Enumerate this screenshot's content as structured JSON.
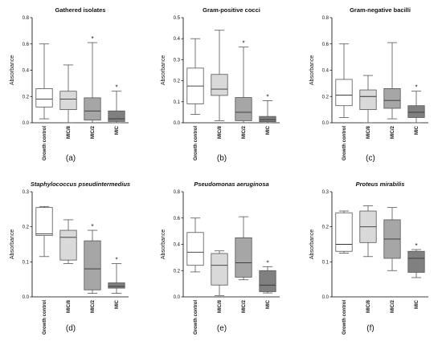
{
  "chart_data": [
    {
      "type": "box",
      "panel_label": "(a)",
      "title": "Gathered isolates",
      "title_italic": false,
      "ylabel": "Absorbance",
      "ylim": [
        0,
        0.8
      ],
      "yticks": [
        {
          "v": 0,
          "t": "0.0"
        },
        {
          "v": 0.2,
          "t": "0.2"
        },
        {
          "v": 0.4,
          "t": "0.4"
        },
        {
          "v": 0.6,
          "t": "0.6"
        },
        {
          "v": 0.8,
          "t": "0.8"
        }
      ],
      "categories": [
        "Growth control",
        "MIC/8",
        "MIC/2",
        "MIC"
      ],
      "fills": [
        "#ffffff",
        "#d9d9d9",
        "#a6a6a6",
        "#808080"
      ],
      "boxes": [
        {
          "min": 0.03,
          "q1": 0.12,
          "median": 0.18,
          "q3": 0.26,
          "max": 0.6,
          "star": false
        },
        {
          "min": 0.0,
          "q1": 0.1,
          "median": 0.18,
          "q3": 0.24,
          "max": 0.44,
          "star": false
        },
        {
          "min": 0.0,
          "q1": 0.02,
          "median": 0.09,
          "q3": 0.19,
          "max": 0.61,
          "star": true
        },
        {
          "min": 0.0,
          "q1": 0.01,
          "median": 0.03,
          "q3": 0.09,
          "max": 0.24,
          "star": true
        }
      ]
    },
    {
      "type": "box",
      "panel_label": "(b)",
      "title": "Gram-positive cocci",
      "title_italic": false,
      "ylabel": "Absorbance",
      "ylim": [
        0,
        0.5
      ],
      "yticks": [
        {
          "v": 0,
          "t": "0.0"
        },
        {
          "v": 0.1,
          "t": "0.1"
        },
        {
          "v": 0.2,
          "t": "0.2"
        },
        {
          "v": 0.3,
          "t": "0.3"
        },
        {
          "v": 0.4,
          "t": "0.4"
        },
        {
          "v": 0.5,
          "t": "0.5"
        }
      ],
      "categories": [
        "Growth control",
        "MIC/8",
        "MIC/2",
        "MIC"
      ],
      "fills": [
        "#ffffff",
        "#d9d9d9",
        "#a6a6a6",
        "#808080"
      ],
      "boxes": [
        {
          "min": 0.04,
          "q1": 0.09,
          "median": 0.175,
          "q3": 0.26,
          "max": 0.4,
          "star": false
        },
        {
          "min": 0.01,
          "q1": 0.13,
          "median": 0.16,
          "q3": 0.23,
          "max": 0.44,
          "star": false
        },
        {
          "min": 0.0,
          "q1": 0.01,
          "median": 0.05,
          "q3": 0.12,
          "max": 0.36,
          "star": true
        },
        {
          "min": 0.0,
          "q1": 0.005,
          "median": 0.015,
          "q3": 0.03,
          "max": 0.105,
          "star": true
        }
      ]
    },
    {
      "type": "box",
      "panel_label": "(c)",
      "title": "Gram-negative bacilli",
      "title_italic": false,
      "ylabel": "Absorbance",
      "ylim": [
        0,
        0.8
      ],
      "yticks": [
        {
          "v": 0,
          "t": "0.0"
        },
        {
          "v": 0.2,
          "t": "0.2"
        },
        {
          "v": 0.4,
          "t": "0.4"
        },
        {
          "v": 0.6,
          "t": "0.6"
        },
        {
          "v": 0.8,
          "t": "0.8"
        }
      ],
      "categories": [
        "Growth control",
        "MIC/8",
        "MIC/2",
        "MIC"
      ],
      "fills": [
        "#ffffff",
        "#d9d9d9",
        "#a6a6a6",
        "#808080"
      ],
      "boxes": [
        {
          "min": 0.04,
          "q1": 0.13,
          "median": 0.21,
          "q3": 0.33,
          "max": 0.6,
          "star": false
        },
        {
          "min": 0.0,
          "q1": 0.1,
          "median": 0.2,
          "q3": 0.25,
          "max": 0.36,
          "star": false
        },
        {
          "min": 0.03,
          "q1": 0.11,
          "median": 0.17,
          "q3": 0.26,
          "max": 0.61,
          "star": false
        },
        {
          "min": 0.0,
          "q1": 0.04,
          "median": 0.08,
          "q3": 0.13,
          "max": 0.24,
          "star": true
        }
      ]
    },
    {
      "type": "box",
      "panel_label": "(d)",
      "title": "Staphylococcus pseudintermedius",
      "title_italic": true,
      "ylabel": "Absorbance",
      "ylim": [
        0,
        0.3
      ],
      "yticks": [
        {
          "v": 0,
          "t": "0.0"
        },
        {
          "v": 0.1,
          "t": "0.1"
        },
        {
          "v": 0.2,
          "t": "0.2"
        },
        {
          "v": 0.3,
          "t": "0.3"
        }
      ],
      "categories": [
        "Growth control",
        "MIC/8",
        "MIC/2",
        "MIC"
      ],
      "fills": [
        "#ffffff",
        "#d9d9d9",
        "#a6a6a6",
        "#808080"
      ],
      "boxes": [
        {
          "min": 0.115,
          "q1": 0.175,
          "median": 0.18,
          "q3": 0.255,
          "max": 0.258,
          "star": false
        },
        {
          "min": 0.095,
          "q1": 0.105,
          "median": 0.17,
          "q3": 0.19,
          "max": 0.22,
          "star": false
        },
        {
          "min": 0.01,
          "q1": 0.02,
          "median": 0.08,
          "q3": 0.16,
          "max": 0.19,
          "star": true
        },
        {
          "min": 0.01,
          "q1": 0.025,
          "median": 0.03,
          "q3": 0.04,
          "max": 0.095,
          "star": true
        }
      ]
    },
    {
      "type": "box",
      "panel_label": "(e)",
      "title": "Pseudomonas aeruginosa",
      "title_italic": true,
      "ylabel": "Absorbance",
      "ylim": [
        0,
        0.8
      ],
      "yticks": [
        {
          "v": 0,
          "t": "0.0"
        },
        {
          "v": 0.2,
          "t": "0.2"
        },
        {
          "v": 0.4,
          "t": "0.4"
        },
        {
          "v": 0.6,
          "t": "0.6"
        },
        {
          "v": 0.8,
          "t": "0.8"
        }
      ],
      "categories": [
        "Growth control",
        "MIC/8",
        "MIC/2",
        "MIC"
      ],
      "fills": [
        "#ffffff",
        "#d9d9d9",
        "#a6a6a6",
        "#808080"
      ],
      "boxes": [
        {
          "min": 0.19,
          "q1": 0.24,
          "median": 0.34,
          "q3": 0.49,
          "max": 0.6,
          "star": false
        },
        {
          "min": 0.01,
          "q1": 0.09,
          "median": 0.24,
          "q3": 0.33,
          "max": 0.35,
          "star": false
        },
        {
          "min": 0.13,
          "q1": 0.15,
          "median": 0.26,
          "q3": 0.45,
          "max": 0.61,
          "star": false
        },
        {
          "min": 0.03,
          "q1": 0.04,
          "median": 0.09,
          "q3": 0.2,
          "max": 0.23,
          "star": true
        }
      ]
    },
    {
      "type": "box",
      "panel_label": "(f)",
      "title": "Proteus mirabilis",
      "title_italic": true,
      "ylabel": "Absorbance",
      "ylim": [
        0,
        0.3
      ],
      "yticks": [
        {
          "v": 0,
          "t": "0.0"
        },
        {
          "v": 0.1,
          "t": "0.1"
        },
        {
          "v": 0.2,
          "t": "0.2"
        },
        {
          "v": 0.3,
          "t": "0.3"
        }
      ],
      "categories": [
        "Growth control",
        "MIC/8",
        "MIC/2",
        "MIC"
      ],
      "fills": [
        "#ffffff",
        "#d9d9d9",
        "#a6a6a6",
        "#808080"
      ],
      "boxes": [
        {
          "min": 0.125,
          "q1": 0.13,
          "median": 0.15,
          "q3": 0.24,
          "max": 0.245,
          "star": false
        },
        {
          "min": 0.115,
          "q1": 0.155,
          "median": 0.2,
          "q3": 0.245,
          "max": 0.26,
          "star": false
        },
        {
          "min": 0.075,
          "q1": 0.11,
          "median": 0.165,
          "q3": 0.22,
          "max": 0.255,
          "star": false
        },
        {
          "min": 0.055,
          "q1": 0.07,
          "median": 0.11,
          "q3": 0.13,
          "max": 0.135,
          "star": true
        }
      ]
    }
  ]
}
